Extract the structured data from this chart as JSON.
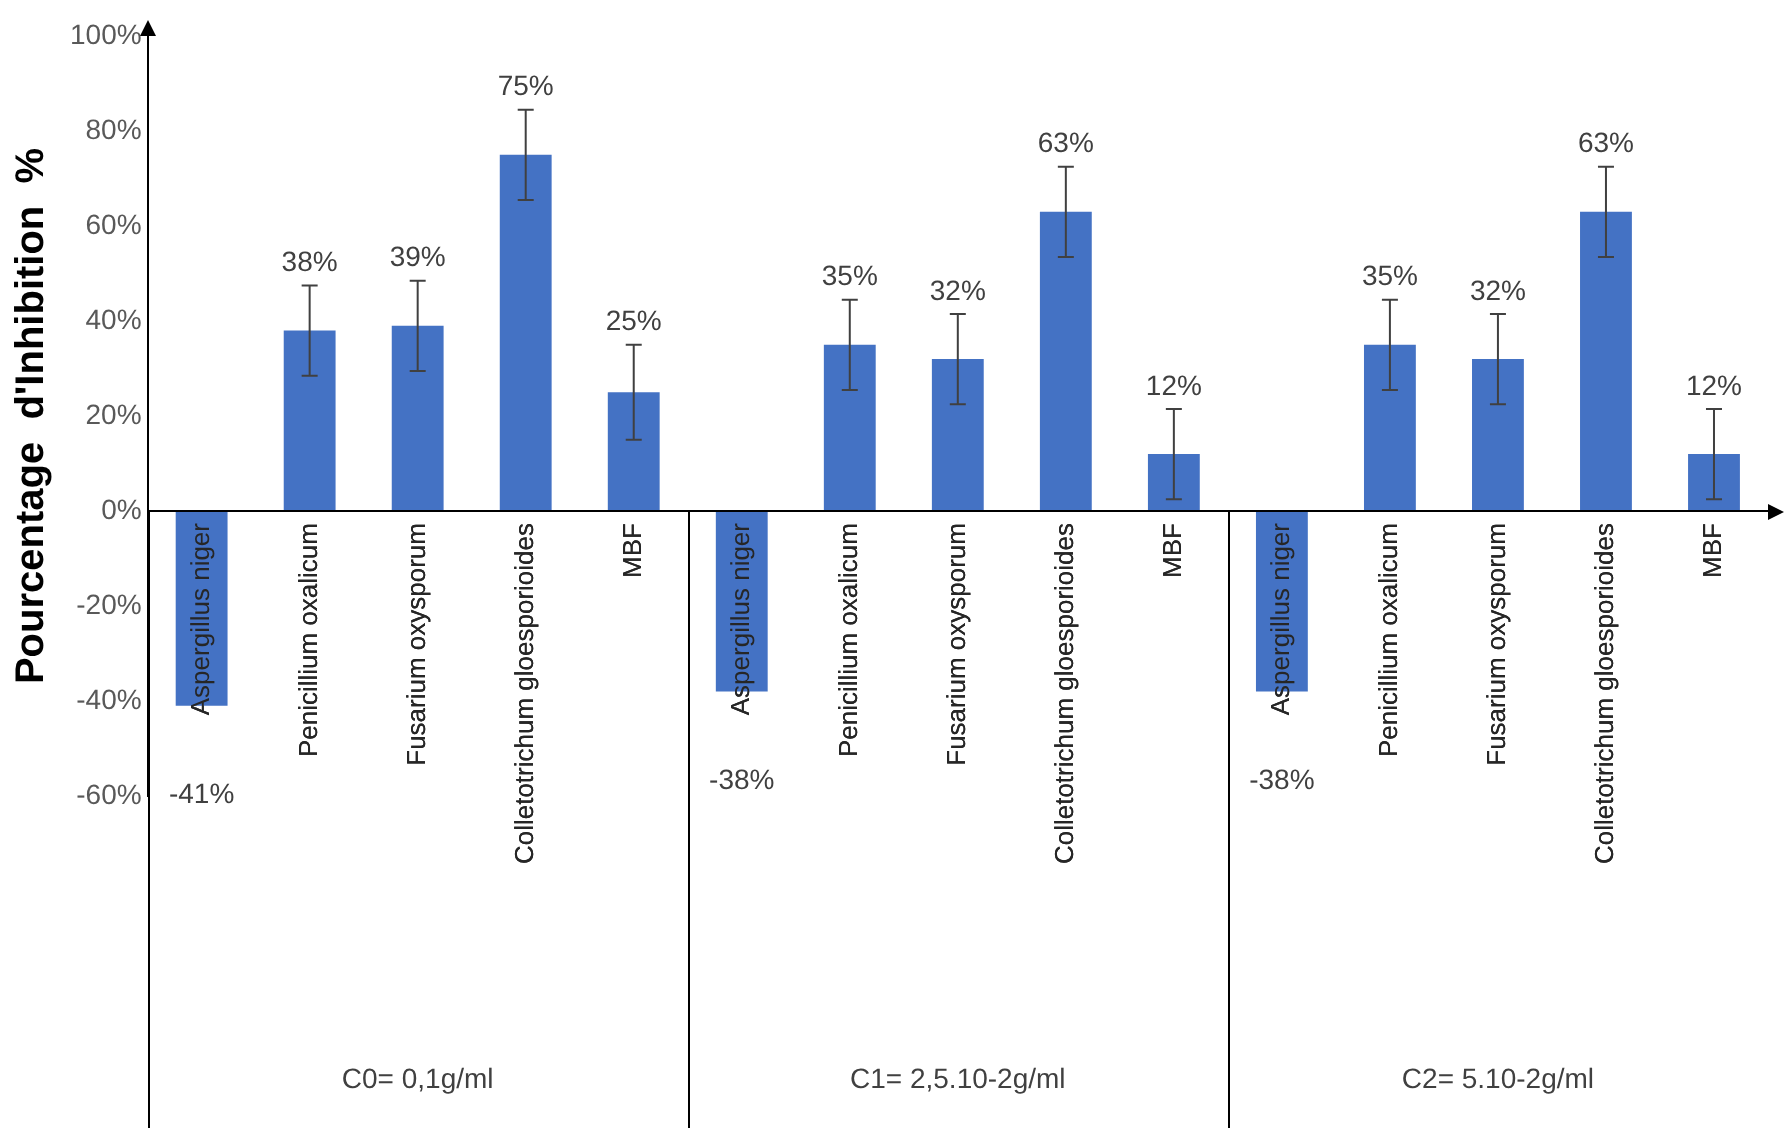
{
  "chart_data": {
    "type": "bar",
    "ylabel": "Pourcentage  d'Inhibition  %",
    "categories": [
      "Aspergillus niger",
      "Penicillium oxalicum",
      "Fusarium oxysporum",
      "Colletotrichum gloesporioides",
      "MBF",
      "Aspergillus niger",
      "Penicillium oxalicum",
      "Fusarium oxysporum",
      "Colletotrichum gloesporioides",
      "MBF",
      "Aspergillus niger",
      "Penicillium oxalicum",
      "Fusarium oxysporum",
      "Colletotrichum gloesporioides",
      "MBF"
    ],
    "values": [
      -41,
      38,
      39,
      75,
      25,
      -38,
      35,
      32,
      63,
      12,
      -38,
      35,
      32,
      63,
      12
    ],
    "value_labels": [
      "-41%",
      "38%",
      "39%",
      "75%",
      "25%",
      "-38%",
      "35%",
      "32%",
      "63%",
      "12%",
      "-38%",
      "35%",
      "32%",
      "63%",
      "12%"
    ],
    "errors": [
      null,
      9.5,
      9.5,
      9.5,
      10,
      null,
      9.5,
      9.5,
      9.5,
      9.5,
      null,
      9.5,
      9.5,
      9.5,
      9.5
    ],
    "color": "#4472c4",
    "ylim": [
      -60,
      100
    ],
    "yticks": [
      {
        "value": -60,
        "label": "-60%"
      },
      {
        "value": -40,
        "label": "-40%"
      },
      {
        "value": -20,
        "label": "-20%"
      },
      {
        "value": 0,
        "label": "0%"
      },
      {
        "value": 20,
        "label": "20%"
      },
      {
        "value": 40,
        "label": "40%"
      },
      {
        "value": 60,
        "label": "60%"
      },
      {
        "value": 80,
        "label": "80%"
      },
      {
        "value": 100,
        "label": "100%"
      }
    ],
    "annotations": [
      "C0= 0,1g/ml",
      "C1= 2,5.10-2g/ml",
      "C2= 5.10-2g/ml"
    ],
    "grid": false,
    "legend": false
  }
}
